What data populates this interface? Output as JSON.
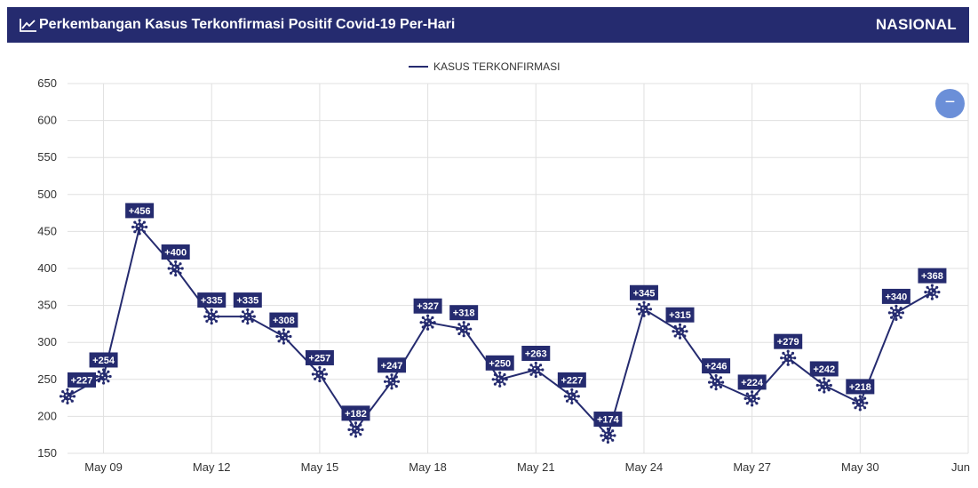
{
  "header": {
    "title": "Perkembangan Kasus Terkonfirmasi Positif Covid-19 Per-Hari",
    "region": "NASIONAL",
    "icon": "line-chart-icon"
  },
  "controls": {
    "zoom_icon": "minus-icon",
    "zoom_symbol": "−"
  },
  "chart_data": {
    "type": "line",
    "ylim": [
      150,
      650
    ],
    "yticks": [
      150,
      200,
      250,
      300,
      350,
      400,
      450,
      500,
      550,
      600,
      650
    ],
    "x_tick_labels": [
      "May 09",
      "May 12",
      "May 15",
      "May 18",
      "May 21",
      "May 24",
      "May 27",
      "May 30",
      "Jun"
    ],
    "x_tick_dates": [
      "2020-05-09",
      "2020-05-12",
      "2020-05-15",
      "2020-05-18",
      "2020-05-21",
      "2020-05-24",
      "2020-05-27",
      "2020-05-30",
      "2020-06-02"
    ],
    "x_range": [
      "2020-05-08",
      "2020-06-02"
    ],
    "grid": true,
    "legend_position": "top-center",
    "marker": "virus-icon",
    "colors": {
      "line": "#252b6f",
      "label_bg": "#252b6f",
      "label_text": "#ffffff",
      "grid": "#e0e0e0"
    },
    "series": [
      {
        "name": "KASUS TERKONFIRMASI",
        "points": [
          {
            "x": "2020-05-08",
            "y": 227,
            "label": "+227"
          },
          {
            "x": "2020-05-09",
            "y": 254,
            "label": "+254"
          },
          {
            "x": "2020-05-10",
            "y": 456,
            "label": "+456"
          },
          {
            "x": "2020-05-11",
            "y": 400,
            "label": "+400"
          },
          {
            "x": "2020-05-12",
            "y": 335,
            "label": "+335"
          },
          {
            "x": "2020-05-13",
            "y": 335,
            "label": "+335"
          },
          {
            "x": "2020-05-14",
            "y": 308,
            "label": "+308"
          },
          {
            "x": "2020-05-15",
            "y": 257,
            "label": "+257"
          },
          {
            "x": "2020-05-16",
            "y": 182,
            "label": "+182"
          },
          {
            "x": "2020-05-17",
            "y": 247,
            "label": "+247"
          },
          {
            "x": "2020-05-18",
            "y": 327,
            "label": "+327"
          },
          {
            "x": "2020-05-19",
            "y": 318,
            "label": "+318"
          },
          {
            "x": "2020-05-20",
            "y": 250,
            "label": "+250"
          },
          {
            "x": "2020-05-21",
            "y": 263,
            "label": "+263"
          },
          {
            "x": "2020-05-22",
            "y": 227,
            "label": "+227"
          },
          {
            "x": "2020-05-23",
            "y": 174,
            "label": "+174"
          },
          {
            "x": "2020-05-24",
            "y": 345,
            "label": "+345"
          },
          {
            "x": "2020-05-25",
            "y": 315,
            "label": "+315"
          },
          {
            "x": "2020-05-26",
            "y": 246,
            "label": "+246"
          },
          {
            "x": "2020-05-27",
            "y": 224,
            "label": "+224"
          },
          {
            "x": "2020-05-28",
            "y": 279,
            "label": "+279"
          },
          {
            "x": "2020-05-29",
            "y": 242,
            "label": "+242"
          },
          {
            "x": "2020-05-30",
            "y": 218,
            "label": "+218"
          },
          {
            "x": "2020-05-31",
            "y": 340,
            "label": "+340"
          },
          {
            "x": "2020-06-01",
            "y": 368,
            "label": "+368"
          }
        ]
      }
    ]
  }
}
